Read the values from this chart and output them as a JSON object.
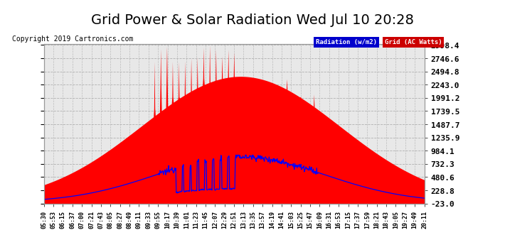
{
  "title": "Grid Power & Solar Radiation Wed Jul 10 20:28",
  "copyright": "Copyright 2019 Cartronics.com",
  "bg_color": "#ffffff",
  "plot_bg_color": "#e8e8e8",
  "grid_color": "#aaaaaa",
  "yticks": [
    -23.0,
    228.8,
    480.6,
    732.3,
    984.1,
    1235.9,
    1487.7,
    1739.5,
    1991.2,
    2243.0,
    2494.8,
    2746.6,
    2998.4
  ],
  "ymin": -23.0,
  "ymax": 2998.4,
  "xtick_labels": [
    "05:30",
    "05:53",
    "06:15",
    "06:37",
    "07:00",
    "07:21",
    "07:43",
    "08:05",
    "08:27",
    "08:49",
    "09:11",
    "09:33",
    "09:55",
    "10:17",
    "10:39",
    "11:01",
    "11:23",
    "11:45",
    "12:07",
    "12:29",
    "12:51",
    "13:13",
    "13:35",
    "13:57",
    "14:19",
    "14:41",
    "15:03",
    "15:25",
    "15:47",
    "16:09",
    "16:31",
    "16:53",
    "17:15",
    "17:37",
    "17:59",
    "18:21",
    "18:43",
    "19:05",
    "19:27",
    "19:49",
    "20:11"
  ],
  "radiation_color": "#0000ff",
  "grid_watts_color": "#ff0000",
  "legend_radiation_bg": "#0000cc",
  "legend_grid_bg": "#cc0000",
  "title_color": "#000000",
  "title_fontsize": 14,
  "copyright_fontsize": 7,
  "ytick_fontsize": 8,
  "xtick_fontsize": 6
}
